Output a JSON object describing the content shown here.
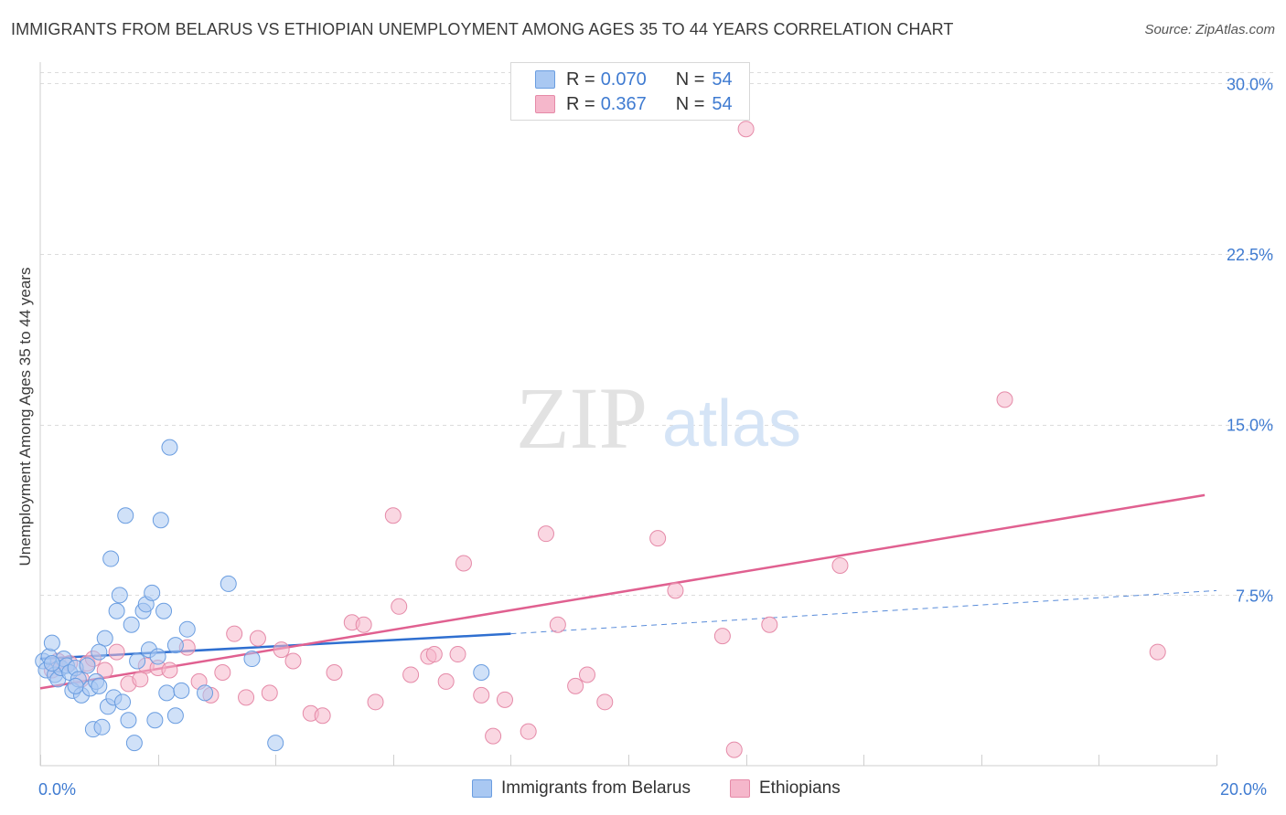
{
  "header": {
    "title": "IMMIGRANTS FROM BELARUS VS ETHIOPIAN UNEMPLOYMENT AMONG AGES 35 TO 44 YEARS CORRELATION CHART",
    "source": "Source: ZipAtlas.com"
  },
  "watermark": {
    "zip": "ZIP",
    "atlas": "atlas"
  },
  "legend": {
    "rows": [
      {
        "label": "R =",
        "r": "0.070",
        "n_label": "N =",
        "n": "54",
        "color": "#a9c8f2"
      },
      {
        "label": "R =",
        "r": "0.367",
        "n_label": "N =",
        "n": "54",
        "color": "#f5b7cb"
      }
    ]
  },
  "bottom_legend": {
    "belarus": "Immigrants from Belarus",
    "ethiopians": "Ethiopians"
  },
  "axis_text": {
    "x_min": "0.0%",
    "x_max": "20.0%",
    "y_ticks": [
      "7.5%",
      "15.0%",
      "22.5%",
      "30.0%"
    ]
  },
  "colors": {
    "belarus_fill": "#a9c8f2",
    "belarus_stroke": "#6a9de0",
    "belarus_line": "#2f6fd0",
    "ethiopian_fill": "#f5b7cb",
    "ethiopian_stroke": "#e58aa8",
    "ethiopian_line": "#e06090",
    "accent_text": "#3f7bd1"
  },
  "chart_data": {
    "type": "scatter",
    "title": "IMMIGRANTS FROM BELARUS VS ETHIOPIAN UNEMPLOYMENT AMONG AGES 35 TO 44 YEARS CORRELATION CHART",
    "xlabel": "",
    "ylabel": "Unemployment Among Ages 35 to 44 years",
    "xlim": [
      0,
      20
    ],
    "ylim": [
      0,
      30.5
    ],
    "y_ticks": [
      7.5,
      15.0,
      22.5,
      30.0
    ],
    "grid": true,
    "series": [
      {
        "name": "Immigrants from Belarus",
        "R": 0.07,
        "N": 54,
        "trend": {
          "x0": 0,
          "y0": 4.7,
          "x1": 8,
          "y1": 5.8,
          "x_dash_end": 20,
          "y_dash_end": 7.7
        },
        "points": [
          [
            0.05,
            4.6
          ],
          [
            0.1,
            4.2
          ],
          [
            0.15,
            4.8
          ],
          [
            0.2,
            5.4
          ],
          [
            0.25,
            4.0
          ],
          [
            0.3,
            3.8
          ],
          [
            0.35,
            4.3
          ],
          [
            0.4,
            4.7
          ],
          [
            0.45,
            4.4
          ],
          [
            0.5,
            4.1
          ],
          [
            0.55,
            3.3
          ],
          [
            0.6,
            4.3
          ],
          [
            0.65,
            3.8
          ],
          [
            0.7,
            3.1
          ],
          [
            0.8,
            4.4
          ],
          [
            0.85,
            3.4
          ],
          [
            0.9,
            1.6
          ],
          [
            0.95,
            3.7
          ],
          [
            1.0,
            3.5
          ],
          [
            1.05,
            1.7
          ],
          [
            1.1,
            5.6
          ],
          [
            1.15,
            2.6
          ],
          [
            1.2,
            9.1
          ],
          [
            1.25,
            3.0
          ],
          [
            1.3,
            6.8
          ],
          [
            1.35,
            7.5
          ],
          [
            1.4,
            2.8
          ],
          [
            1.45,
            11.0
          ],
          [
            1.5,
            2.0
          ],
          [
            1.55,
            6.2
          ],
          [
            1.6,
            1.0
          ],
          [
            1.65,
            4.6
          ],
          [
            1.75,
            6.8
          ],
          [
            1.8,
            7.1
          ],
          [
            1.85,
            5.1
          ],
          [
            1.9,
            7.6
          ],
          [
            1.95,
            2.0
          ],
          [
            2.0,
            4.8
          ],
          [
            2.05,
            10.8
          ],
          [
            2.1,
            6.8
          ],
          [
            2.15,
            3.2
          ],
          [
            2.2,
            14.0
          ],
          [
            2.3,
            5.3
          ],
          [
            2.4,
            3.3
          ],
          [
            2.5,
            6.0
          ],
          [
            2.3,
            2.2
          ],
          [
            2.8,
            3.2
          ],
          [
            3.2,
            8.0
          ],
          [
            3.6,
            4.7
          ],
          [
            4.0,
            1.0
          ],
          [
            7.5,
            4.1
          ],
          [
            1.0,
            5.0
          ],
          [
            0.2,
            4.5
          ],
          [
            0.6,
            3.5
          ]
        ]
      },
      {
        "name": "Ethiopians",
        "R": 0.367,
        "N": 54,
        "trend": {
          "x0": 0,
          "y0": 3.4,
          "x1": 19.8,
          "y1": 11.9
        },
        "points": [
          [
            0.2,
            4.2
          ],
          [
            0.3,
            4.6
          ],
          [
            0.5,
            4.5
          ],
          [
            0.7,
            3.8
          ],
          [
            0.8,
            4.5
          ],
          [
            0.9,
            4.7
          ],
          [
            1.1,
            4.2
          ],
          [
            1.3,
            5.0
          ],
          [
            1.5,
            3.6
          ],
          [
            1.7,
            3.8
          ],
          [
            1.8,
            4.4
          ],
          [
            2.0,
            4.3
          ],
          [
            2.2,
            4.2
          ],
          [
            2.5,
            5.2
          ],
          [
            2.7,
            3.7
          ],
          [
            2.9,
            3.1
          ],
          [
            3.1,
            4.1
          ],
          [
            3.3,
            5.8
          ],
          [
            3.5,
            3.0
          ],
          [
            3.7,
            5.6
          ],
          [
            3.9,
            3.2
          ],
          [
            4.1,
            5.1
          ],
          [
            4.3,
            4.6
          ],
          [
            4.6,
            2.3
          ],
          [
            4.8,
            2.2
          ],
          [
            5.0,
            4.1
          ],
          [
            5.3,
            6.3
          ],
          [
            5.5,
            6.2
          ],
          [
            5.7,
            2.8
          ],
          [
            6.0,
            11.0
          ],
          [
            6.1,
            7.0
          ],
          [
            6.3,
            4.0
          ],
          [
            6.6,
            4.8
          ],
          [
            6.7,
            4.9
          ],
          [
            6.9,
            3.7
          ],
          [
            7.1,
            4.9
          ],
          [
            7.2,
            8.9
          ],
          [
            7.5,
            3.1
          ],
          [
            7.7,
            1.3
          ],
          [
            7.9,
            2.9
          ],
          [
            8.3,
            1.5
          ],
          [
            8.6,
            10.2
          ],
          [
            8.8,
            6.2
          ],
          [
            9.1,
            3.5
          ],
          [
            9.3,
            4.0
          ],
          [
            9.6,
            2.8
          ],
          [
            10.5,
            10.0
          ],
          [
            10.8,
            7.7
          ],
          [
            11.6,
            5.7
          ],
          [
            11.8,
            0.7
          ],
          [
            12.4,
            6.2
          ],
          [
            13.6,
            8.8
          ],
          [
            16.4,
            16.1
          ],
          [
            19.0,
            5.0
          ]
        ]
      }
    ],
    "outlier_ethiopian": [
      12.0,
      28.0
    ]
  }
}
